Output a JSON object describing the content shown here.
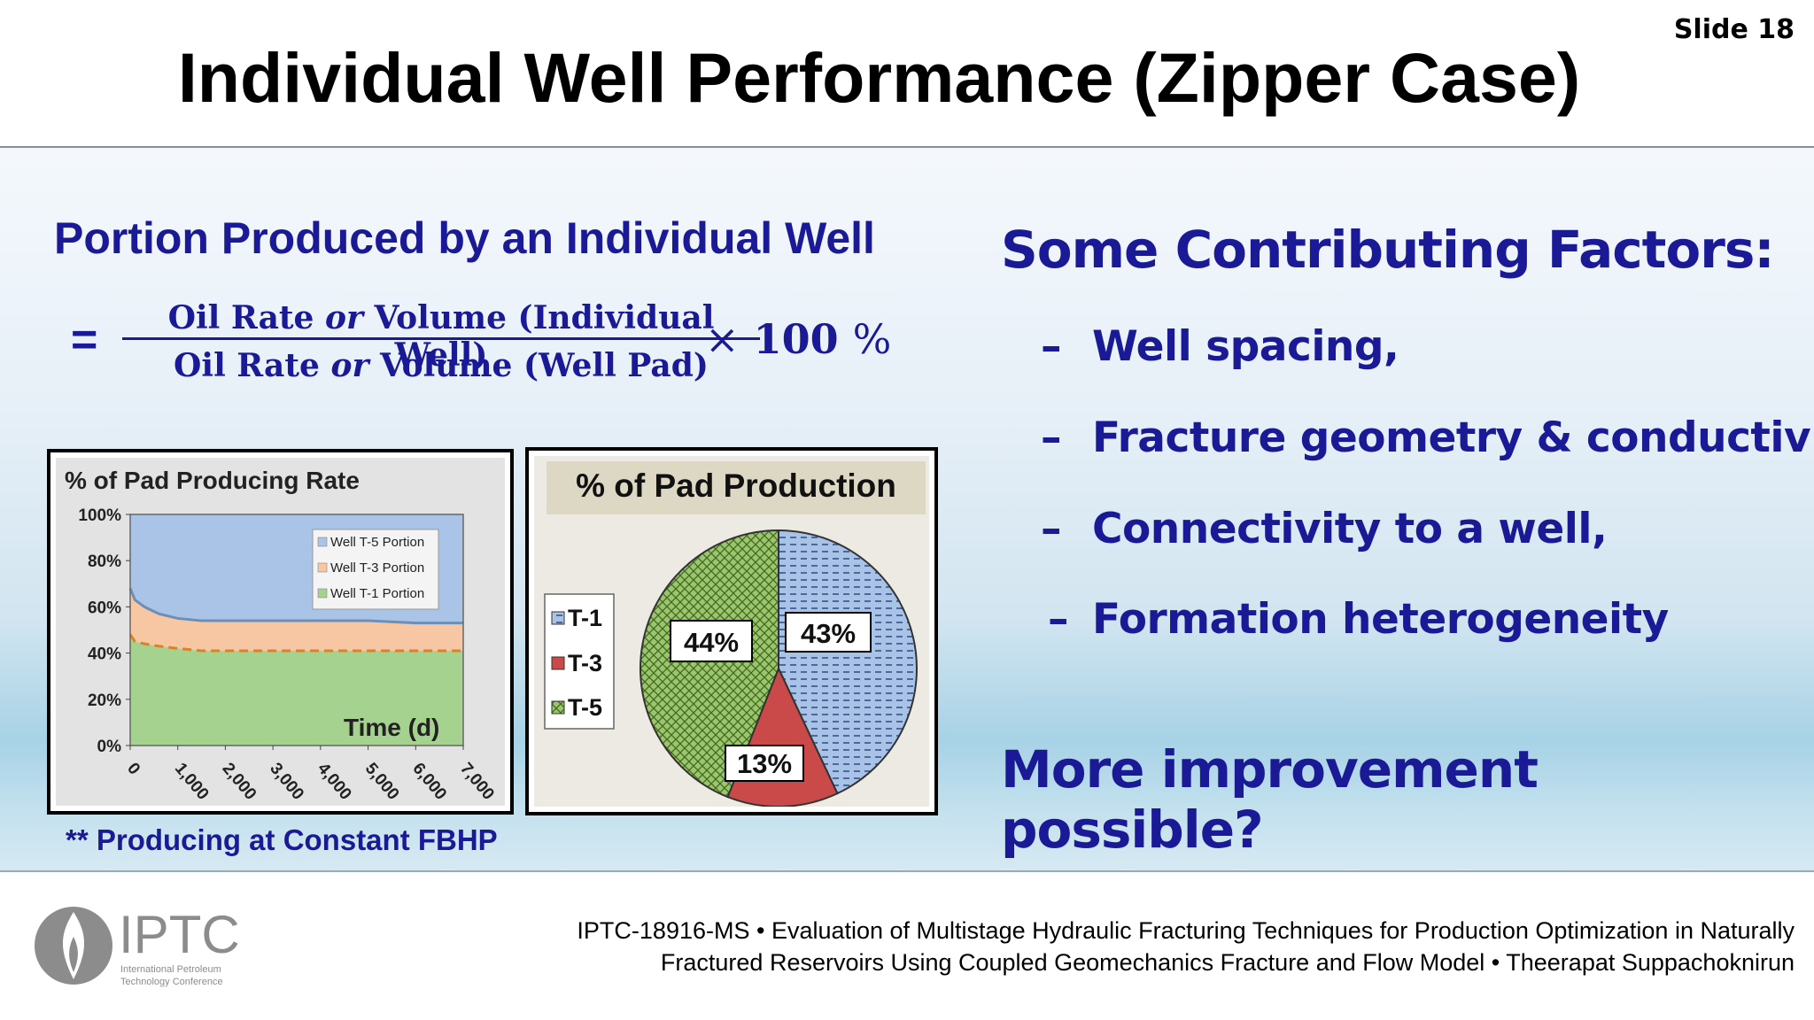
{
  "slide": {
    "number_label": "Slide 18",
    "title": "Individual Well Performance (Zipper Case)"
  },
  "left": {
    "heading": "Portion Produced by an Individual Well",
    "formula": {
      "equals": "=",
      "numerator_a": "Oil Rate ",
      "numerator_or": "or",
      "numerator_b": " Volume (Individual Well)",
      "denominator_a": "Oil Rate ",
      "denominator_or": "or",
      "denominator_b": " Volume (Well Pad)",
      "times": "×",
      "hundred": "100",
      "percent": "%"
    },
    "note": "** Producing at Constant FBHP"
  },
  "right": {
    "heading": "Some Contributing Factors:",
    "dash": "–",
    "factors": [
      "Well spacing,",
      "Fracture geometry & conductivity",
      "Connectivity to a well,",
      "Formation heterogeneity"
    ],
    "closing": "More improvement possible?"
  },
  "footer": {
    "citation_line1": "IPTC-18916-MS • Evaluation of Multistage Hydraulic Fracturing Techniques for Production Optimization in Naturally",
    "citation_line2": "Fractured Reservoirs Using Coupled Geomechanics Fracture and Flow Model • Theerapat Suppachoknirun",
    "logo_text": "IPTC",
    "logo_subtext_1": "International Petroleum",
    "logo_subtext_2": "Technology Conference"
  },
  "colors": {
    "heading_blue": "#1a1a96",
    "t1": "#a9c4e6",
    "t3": "#f7c6a3",
    "t5": "#a6d28f",
    "pie_t1": "#8fb0dc",
    "pie_t3": "#c94a48",
    "pie_t5": "#86b84f"
  },
  "chart_data": [
    {
      "type": "area",
      "title": "% of Pad Producing Rate",
      "xlabel": "Time (d)",
      "ylabel": "",
      "xlim": [
        0,
        7000
      ],
      "ylim": [
        0,
        100
      ],
      "x_ticks": [
        "0",
        "1,000",
        "2,000",
        "3,000",
        "4,000",
        "5,000",
        "6,000",
        "7,000"
      ],
      "y_ticks": [
        "0%",
        "20%",
        "40%",
        "60%",
        "80%",
        "100%"
      ],
      "x": [
        0,
        100,
        300,
        600,
        1000,
        1500,
        2000,
        3000,
        4000,
        5000,
        6000,
        7000
      ],
      "series": [
        {
          "name": "Well T-1 Portion",
          "values": [
            48,
            45,
            44,
            43,
            42,
            41,
            41,
            41,
            41,
            41,
            41,
            41
          ]
        },
        {
          "name": "Well T-3 Portion",
          "values": [
            20,
            18,
            16,
            14,
            13,
            13,
            13,
            13,
            13,
            13,
            12,
            12
          ]
        },
        {
          "name": "Well T-5 Portion",
          "values": [
            32,
            37,
            40,
            43,
            45,
            46,
            46,
            46,
            46,
            46,
            47,
            47
          ]
        }
      ],
      "legend": "top-right",
      "grid": false
    },
    {
      "type": "pie",
      "title": "% of Pad Production",
      "categories": [
        "T-1",
        "T-3",
        "T-5"
      ],
      "values": [
        43,
        13,
        44
      ],
      "labels": [
        "43%",
        "13%",
        "44%"
      ],
      "legend": "left"
    }
  ]
}
